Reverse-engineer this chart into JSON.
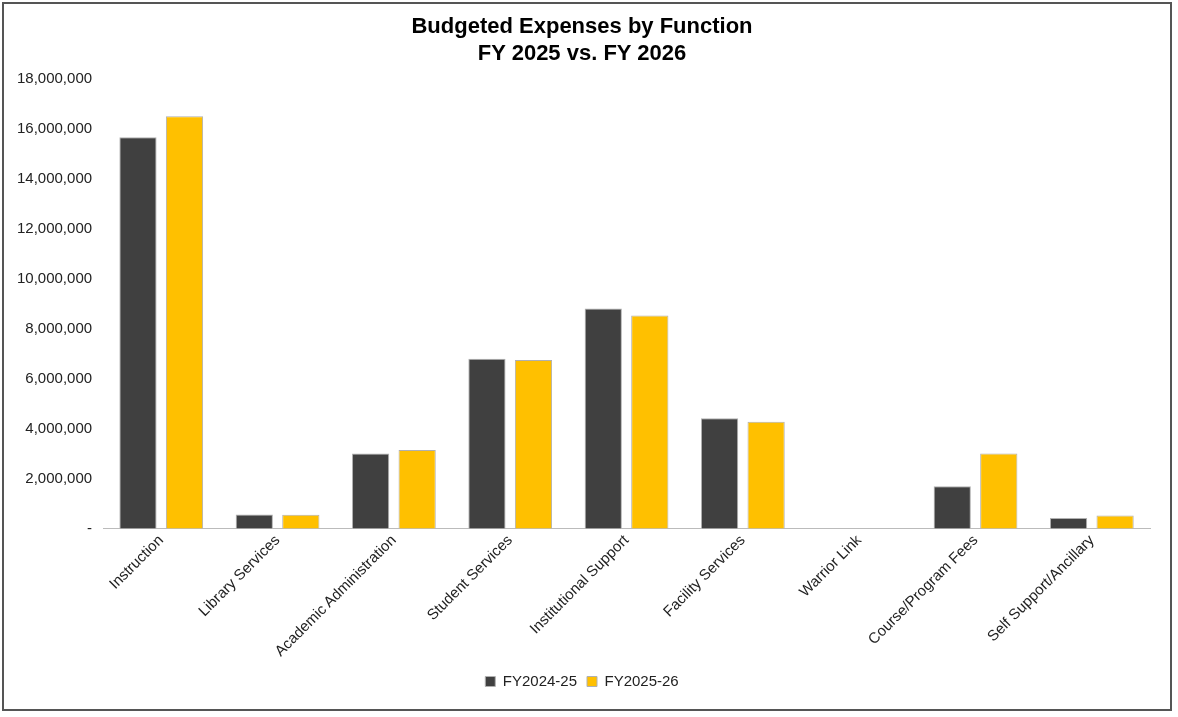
{
  "chart_data": {
    "type": "bar",
    "title": [
      "Budgeted Expenses by Function",
      "FY 2025 vs. FY 2026"
    ],
    "categories": [
      "Instruction",
      "Library Services",
      "Academic Administration",
      "Student Services",
      "Institutional Support",
      "Facility Services",
      "Warrior Link",
      "Course/Program Fees",
      "Self Support/Ancillary"
    ],
    "series": [
      {
        "name": "FY2024-25",
        "color": "#404040",
        "values": [
          15660000,
          560000,
          3000000,
          6800000,
          8810000,
          4410000,
          0,
          1690000,
          420000
        ]
      },
      {
        "name": "FY2025-26",
        "color": "#ffc000",
        "values": [
          16500000,
          550000,
          3140000,
          6750000,
          8530000,
          4270000,
          0,
          3000000,
          520000
        ]
      }
    ],
    "ylim": [
      0,
      18000000
    ],
    "yticks": [
      {
        "value": 0,
        "label": "-"
      },
      {
        "value": 2000000,
        "label": "2,000,000"
      },
      {
        "value": 4000000,
        "label": "4,000,000"
      },
      {
        "value": 6000000,
        "label": "6,000,000"
      },
      {
        "value": 8000000,
        "label": "8,000,000"
      },
      {
        "value": 10000000,
        "label": "10,000,000"
      },
      {
        "value": 12000000,
        "label": "12,000,000"
      },
      {
        "value": 14000000,
        "label": "14,000,000"
      },
      {
        "value": 16000000,
        "label": "16,000,000"
      },
      {
        "value": 18000000,
        "label": "18,000,000"
      }
    ],
    "grid": false,
    "legend": "bottom"
  }
}
